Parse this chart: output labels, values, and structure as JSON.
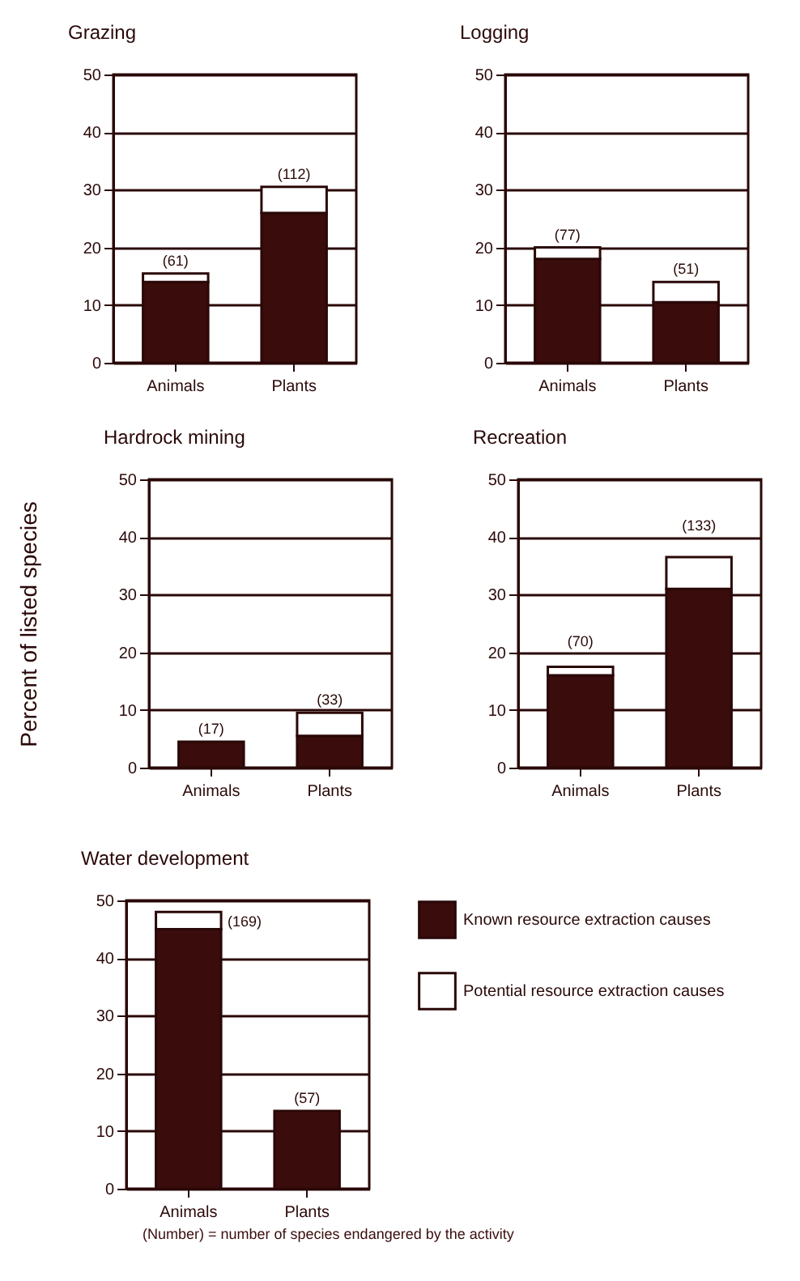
{
  "chart_data": [
    {
      "type": "bar",
      "title": "Grazing",
      "categories": [
        "Animals",
        "Plants"
      ],
      "stacked": true,
      "series": [
        {
          "color": "#3a0c0c",
          "values": [
            14,
            26
          ]
        },
        {
          "color": "#ffffff",
          "values": [
            1.5,
            4.5
          ]
        }
      ],
      "ylim": [
        0,
        50
      ],
      "yticks": [
        0,
        10,
        20,
        30,
        40,
        50
      ],
      "grid": "y",
      "annotations": [
        {
          "text": "(61)",
          "x": "Animals",
          "y": 15.5
        },
        {
          "text": "(112)",
          "x": "Plants",
          "y": 30.5
        }
      ]
    },
    {
      "type": "bar",
      "title": "Logging",
      "categories": [
        "Animals",
        "Plants"
      ],
      "stacked": true,
      "series": [
        {
          "color": "#3a0c0c",
          "values": [
            18,
            10.5
          ]
        },
        {
          "color": "#ffffff",
          "values": [
            2,
            3.5
          ]
        }
      ],
      "ylim": [
        0,
        50
      ],
      "yticks": [
        0,
        10,
        20,
        30,
        40,
        50
      ],
      "grid": "y",
      "annotations": [
        {
          "text": "(77)",
          "x": "Animals",
          "y": 20
        },
        {
          "text": "(51)",
          "x": "Plants",
          "y": 14
        }
      ]
    },
    {
      "type": "bar",
      "title": "Hardrock mining",
      "ylabel": "Percent of listed species",
      "categories": [
        "Animals",
        "Plants"
      ],
      "stacked": true,
      "series": [
        {
          "color": "#3a0c0c",
          "values": [
            4.5,
            5.5
          ]
        },
        {
          "color": "#ffffff",
          "values": [
            0,
            4
          ]
        }
      ],
      "ylim": [
        0,
        50
      ],
      "yticks": [
        0,
        10,
        20,
        30,
        40,
        50
      ],
      "grid": "y",
      "annotations": [
        {
          "text": "(17)",
          "x": "Animals",
          "y": 4.5
        },
        {
          "text": "(33)",
          "x": "Plants",
          "y": 9.5
        }
      ]
    },
    {
      "type": "bar",
      "title": "Recreation",
      "categories": [
        "Animals",
        "Plants"
      ],
      "stacked": true,
      "series": [
        {
          "color": "#3a0c0c",
          "values": [
            16,
            31
          ]
        },
        {
          "color": "#ffffff",
          "values": [
            1.5,
            5.5
          ]
        }
      ],
      "ylim": [
        0,
        50
      ],
      "yticks": [
        0,
        10,
        20,
        30,
        40,
        50
      ],
      "grid": "y",
      "annotations": [
        {
          "text": "(70)",
          "x": "Animals",
          "y": 17.5
        },
        {
          "text": "(133)",
          "x": "Plants",
          "y": 36.5
        }
      ]
    },
    {
      "type": "bar",
      "title": "Water development",
      "categories": [
        "Animals",
        "Plants"
      ],
      "stacked": true,
      "legend": "right",
      "series": [
        {
          "name": "Known resource extraction causes",
          "color": "#3a0c0c",
          "values": [
            45,
            13.5
          ]
        },
        {
          "name": "Potential resource extraction causes",
          "color": "#ffffff",
          "values": [
            3,
            0
          ]
        }
      ],
      "ylim": [
        0,
        50
      ],
      "yticks": [
        0,
        10,
        20,
        30,
        40,
        50
      ],
      "grid": "y",
      "annotations": [
        {
          "text": "(169)",
          "x": "Animals",
          "y": 48
        },
        {
          "text": "(57)",
          "x": "Plants",
          "y": 13.5
        },
        "(Number) = number of species endangered by the activity"
      ]
    }
  ]
}
